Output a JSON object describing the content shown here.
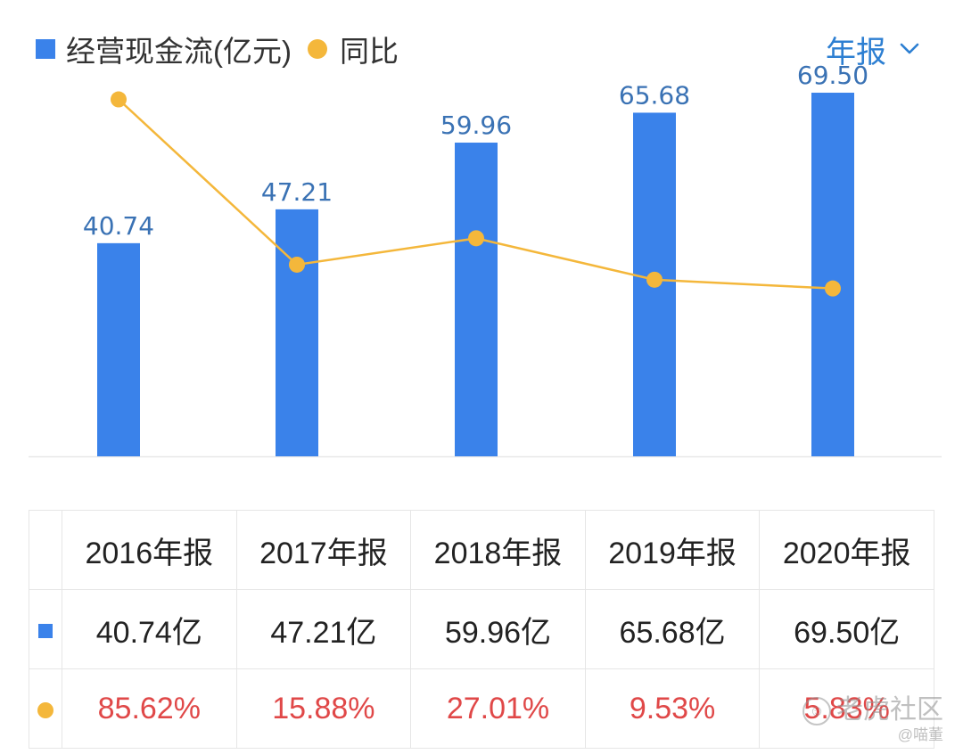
{
  "legend": {
    "bar_label": "经营现金流(亿元)",
    "line_label": "同比"
  },
  "period": {
    "label": "年报",
    "icon": "chevron-down-icon"
  },
  "colors": {
    "bar": "#3a82ea",
    "line": "#f4b73b",
    "bar_text": "#3a72b4",
    "red": "#e04848",
    "period": "#2d7fd2",
    "axis": "#e8e8e8"
  },
  "chart_data": {
    "type": "bar",
    "title": "",
    "categories": [
      "2016年报",
      "2017年报",
      "2018年报",
      "2019年报",
      "2020年报"
    ],
    "series": [
      {
        "name": "经营现金流(亿元)",
        "type": "bar",
        "values": [
          40.74,
          47.21,
          59.96,
          65.68,
          69.5
        ],
        "labels": [
          "40.74",
          "47.21",
          "59.96",
          "65.68",
          "69.50"
        ]
      },
      {
        "name": "同比",
        "type": "line",
        "values": [
          85.62,
          15.88,
          27.01,
          9.53,
          5.83
        ]
      }
    ],
    "ylim_bar": [
      0,
      77
    ],
    "ylim_line": [
      -65,
      105
    ],
    "grid": false
  },
  "table": {
    "headers": [
      "2016年报",
      "2017年报",
      "2018年报",
      "2019年报",
      "2020年报"
    ],
    "bar_row": [
      "40.74亿",
      "47.21亿",
      "59.96亿",
      "65.68亿",
      "69.50亿"
    ],
    "yoy_row": [
      "85.62%",
      "15.88%",
      "27.01%",
      "9.53%",
      "5.83%"
    ]
  },
  "watermark": {
    "main": "老虎社区",
    "sub": "@喵董",
    "icon": "tiger-logo-icon"
  }
}
